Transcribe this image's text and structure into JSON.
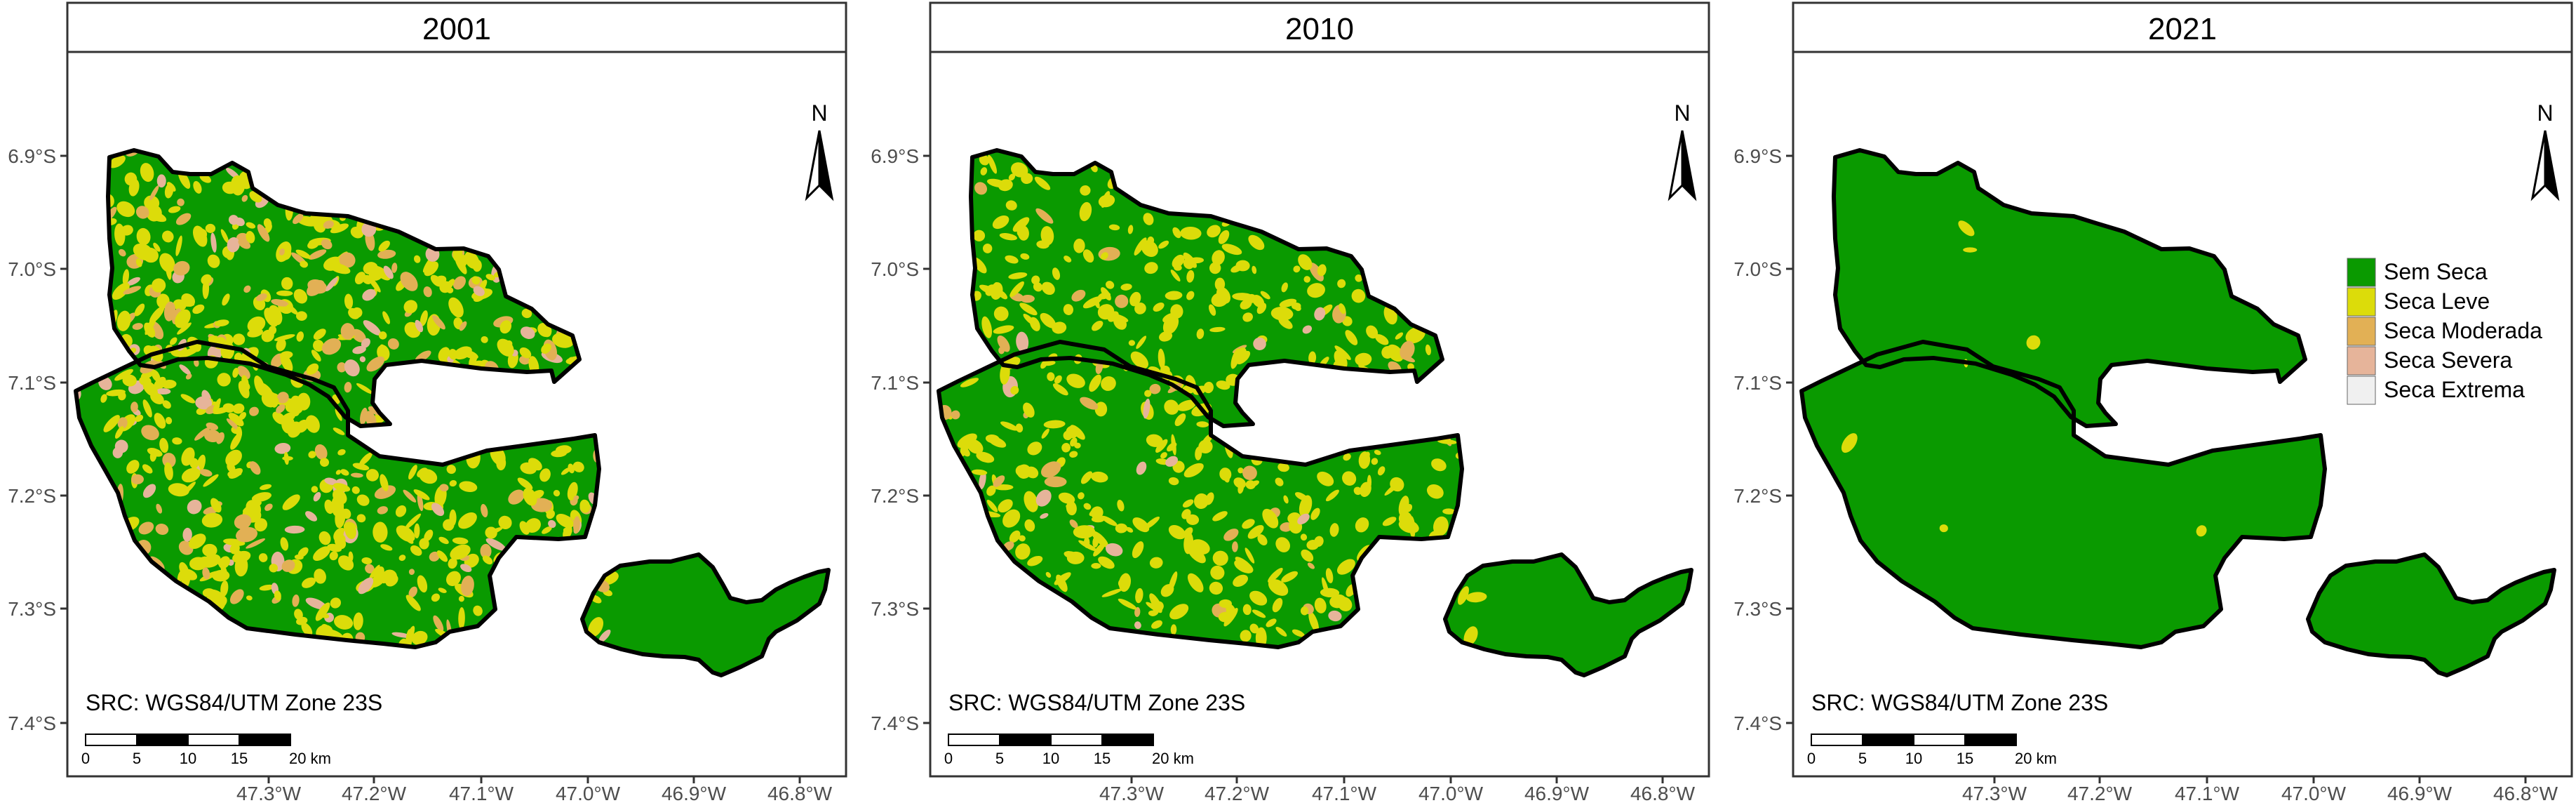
{
  "colors": {
    "sem_seca": "#0A9A00",
    "seca_leve": "#DCDC0A",
    "seca_moderada": "#E2B055",
    "seca_severa": "#E6B49A",
    "seca_extrema": "#F0F0F0",
    "boundary": "#000000",
    "panel_border": "#333333"
  },
  "axes": {
    "y_ticks": [
      "6.9°S",
      "7.0°S",
      "7.1°S",
      "7.2°S",
      "7.3°S",
      "7.4°S"
    ],
    "x_ticks": [
      "47.3°W",
      "47.2°W",
      "47.1°W",
      "47.0°W",
      "46.9°W",
      "46.8°W"
    ]
  },
  "panels": [
    {
      "year": "2001",
      "crs": "SRC: WGS84/UTM Zone 23S",
      "scale_labels": [
        "0",
        "5",
        "10",
        "15",
        "20 km"
      ],
      "north": "N",
      "class_cover": {
        "Sem Seca": 0.52,
        "Seca Leve": 0.33,
        "Seca Moderada": 0.1,
        "Seca Severa": 0.05,
        "Seca Extrema": 0.0
      }
    },
    {
      "year": "2010",
      "crs": "SRC: WGS84/UTM Zone 23S",
      "scale_labels": [
        "0",
        "5",
        "10",
        "15",
        "20 km"
      ],
      "north": "N",
      "class_cover": {
        "Sem Seca": 0.68,
        "Seca Leve": 0.27,
        "Seca Moderada": 0.04,
        "Seca Severa": 0.01,
        "Seca Extrema": 0.0
      }
    },
    {
      "year": "2021",
      "crs": "SRC: WGS84/UTM Zone 23S",
      "scale_labels": [
        "0",
        "5",
        "10",
        "15",
        "20 km"
      ],
      "north": "N",
      "class_cover": {
        "Sem Seca": 0.995,
        "Seca Leve": 0.004,
        "Seca Moderada": 0.001,
        "Seca Severa": 0.0,
        "Seca Extrema": 0.0
      }
    }
  ],
  "legend": {
    "items": [
      {
        "label": "Sem Seca",
        "color": "#0A9A00"
      },
      {
        "label": "Seca Leve",
        "color": "#DCDC0A"
      },
      {
        "label": "Seca Moderada",
        "color": "#E2B055"
      },
      {
        "label": "Seca Severa",
        "color": "#E6B49A"
      },
      {
        "label": "Seca Extrema",
        "color": "#F0F0F0"
      }
    ]
  }
}
